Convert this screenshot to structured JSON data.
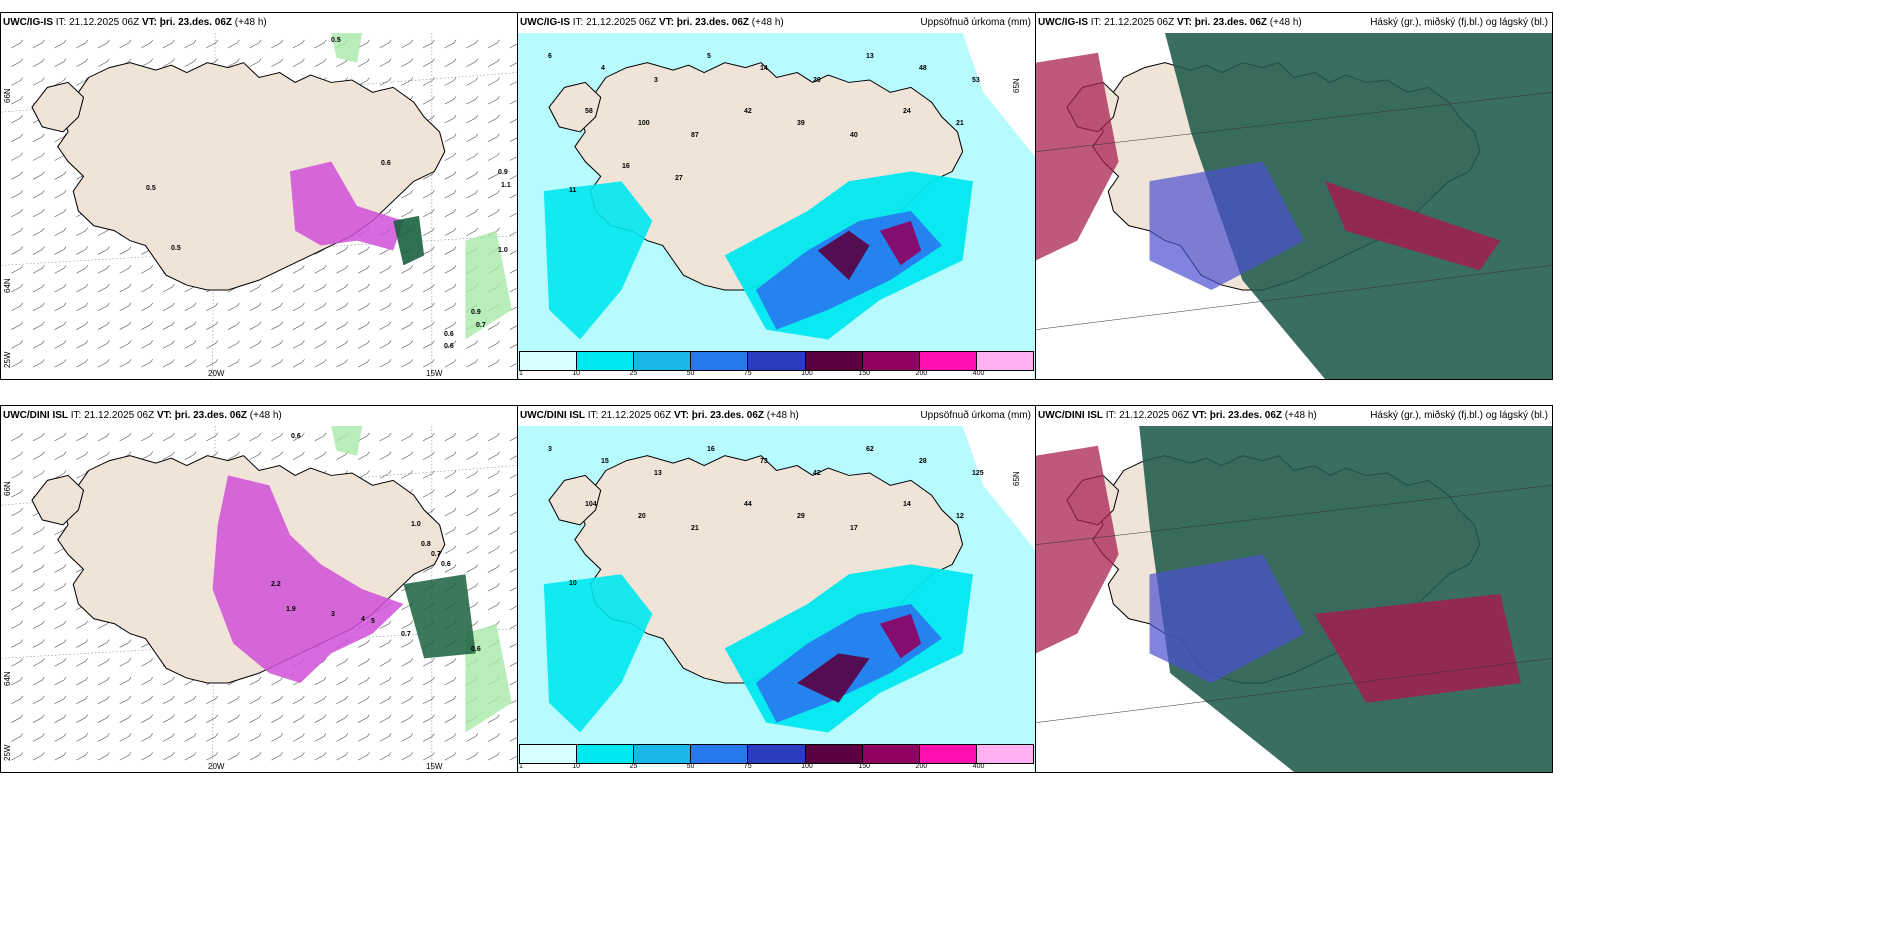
{
  "panels": [
    {
      "title_model": "UWC/IG-IS",
      "title_it": "IT: 21.12.2025 06Z",
      "title_vt_label": "VT:",
      "title_vt": "þri. 23.des. 06Z",
      "title_lead": "(+48 h)",
      "title_right": "",
      "lon_labels": [
        "20W",
        "15W"
      ],
      "lat_labels": [
        "66N",
        "64N",
        "25W"
      ]
    },
    {
      "title_model": "UWC/IG-IS",
      "title_it": "IT: 21.12.2025 06Z",
      "title_vt_label": "VT:",
      "title_vt": "þri. 23.des. 06Z",
      "title_lead": "(+48 h)",
      "title_right": "Uppsöfnuð úrkoma (mm)",
      "lon_labels": [],
      "lat_labels": [
        "65N"
      ]
    },
    {
      "title_model": "UWC/IG-IS",
      "title_it": "IT: 21.12.2025 06Z",
      "title_vt_label": "VT:",
      "title_vt": "þri. 23.des. 06Z",
      "title_lead": "(+48 h)",
      "title_right": "Háský (gr.), miðský (fj.bl.) og lágský (bl.)",
      "lon_labels": [],
      "lat_labels": []
    },
    {
      "title_model": "UWC/DINI ISL",
      "title_it": "IT: 21.12.2025 06Z",
      "title_vt_label": "VT:",
      "title_vt": "þri. 23.des. 06Z",
      "title_lead": "(+48 h)",
      "title_right": "",
      "lon_labels": [
        "20W",
        "15W"
      ],
      "lat_labels": [
        "66N",
        "64N",
        "25W"
      ]
    },
    {
      "title_model": "UWC/DINI ISL",
      "title_it": "IT: 21.12.2025 06Z",
      "title_vt_label": "VT:",
      "title_vt": "þri. 23.des. 06Z",
      "title_lead": "(+48 h)",
      "title_right": "Uppsöfnuð úrkoma (mm)",
      "lon_labels": [],
      "lat_labels": [
        "65N"
      ]
    },
    {
      "title_model": "UWC/DINI ISL",
      "title_it": "IT: 21.12.2025 06Z",
      "title_vt_label": "VT:",
      "title_vt": "þri. 23.des. 06Z",
      "title_lead": "(+48 h)",
      "title_right": "Háský (gr.), miðský (fj.bl.) og lágský (bl.)",
      "lon_labels": [],
      "lat_labels": []
    }
  ],
  "colorbar": {
    "labels": [
      "1",
      "10",
      "25",
      "50",
      "75",
      "100",
      "150",
      "200",
      "400"
    ],
    "colors": [
      "#d8ffff",
      "#00e8f0",
      "#1ab8e8",
      "#2878f0",
      "#2a3cc0",
      "#5a0040",
      "#900060",
      "#ff10b0",
      "#ffb0f0"
    ]
  },
  "precip_labels_top": [
    "6",
    "4",
    "3",
    "5",
    "14",
    "20",
    "13",
    "48",
    "53",
    "58",
    "100",
    "87",
    "42",
    "39",
    "40",
    "24",
    "21",
    "11",
    "16",
    "27"
  ],
  "precip_labels_bottom": [
    "3",
    "15",
    "13",
    "16",
    "73",
    "42",
    "62",
    "28",
    "125",
    "104",
    "20",
    "21",
    "44",
    "29",
    "17",
    "14",
    "12",
    "10"
  ],
  "wind_labels_top": [
    "0.5",
    "0.6",
    "0.9",
    "1.1",
    "1.0",
    "0.5",
    "0.5",
    "0.9",
    "0.7",
    "0.6",
    "0.6"
  ],
  "wind_labels_bottom": [
    "0.6",
    "1.0",
    "0.8",
    "0.7",
    "0.6",
    "2.2",
    "1.9",
    "3",
    "4",
    "5",
    "0.7",
    "0.6"
  ],
  "colors": {
    "land": "#f0e4d8",
    "sea_light": "#b8fbff",
    "cyan": "#00e8f0",
    "magenta": "#d050d8",
    "green": "#1a6040",
    "cloud_dark": "#1f5a4a"
  }
}
